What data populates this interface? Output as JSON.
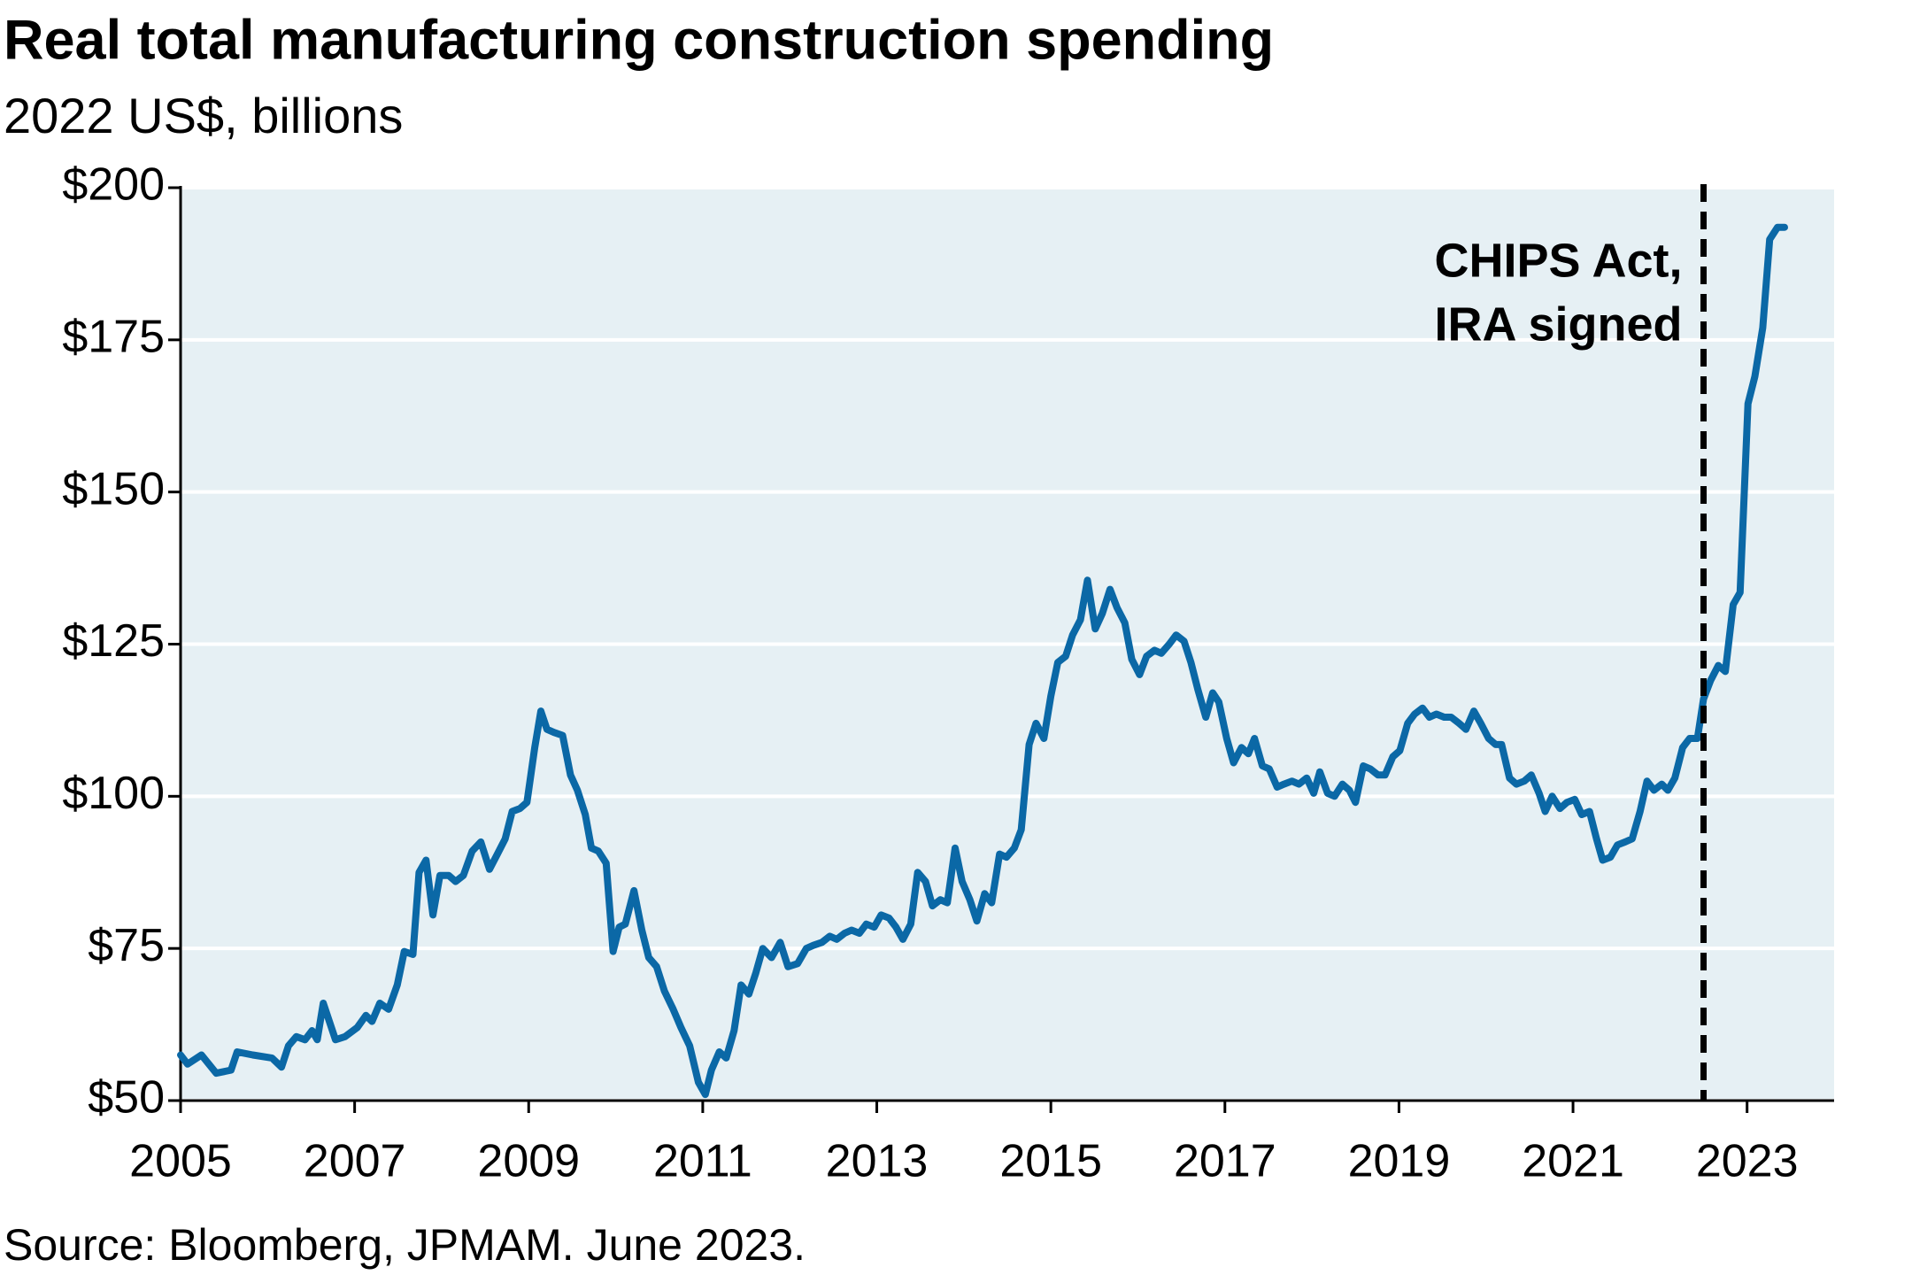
{
  "chart_data": {
    "type": "line",
    "title": "Real total manufacturing construction spending",
    "subtitle": "2022 US$, billions",
    "source": "Source: Bloomberg, JPMAM. June 2023.",
    "color": "#0b68a6",
    "grid": true,
    "xlim": [
      2005,
      2024
    ],
    "xticks": [
      2005,
      2007,
      2009,
      2011,
      2013,
      2015,
      2017,
      2019,
      2021,
      2023
    ],
    "ylim": [
      50,
      200
    ],
    "yticks": [
      {
        "value": 50,
        "label": "$50"
      },
      {
        "value": 75,
        "label": "$75"
      },
      {
        "value": 100,
        "label": "$100"
      },
      {
        "value": 125,
        "label": "$125"
      },
      {
        "value": 150,
        "label": "$150"
      },
      {
        "value": 175,
        "label": "$175"
      },
      {
        "value": 200,
        "label": "$200"
      }
    ],
    "annotations": [
      {
        "lines": [
          "CHIPS Act,",
          "IRA signed"
        ],
        "x": 2022.5
      }
    ],
    "x": [
      2005.0,
      2005.08,
      2005.24,
      2005.41,
      2005.58,
      2005.65,
      2005.83,
      2006.05,
      2006.16,
      2006.24,
      2006.33,
      2006.43,
      2006.51,
      2006.57,
      2006.64,
      2006.78,
      2006.89,
      2007.03,
      2007.13,
      2007.2,
      2007.29,
      2007.39,
      2007.49,
      2007.57,
      2007.67,
      2007.74,
      2007.82,
      2007.9,
      2007.98,
      2008.08,
      2008.16,
      2008.25,
      2008.35,
      2008.45,
      2008.55,
      2008.64,
      2008.73,
      2008.81,
      2008.9,
      2008.98,
      2009.07,
      2009.14,
      2009.21,
      2009.29,
      2009.39,
      2009.48,
      2009.56,
      2009.65,
      2009.72,
      2009.8,
      2009.89,
      2009.97,
      2010.04,
      2010.11,
      2010.21,
      2010.3,
      2010.38,
      2010.47,
      2010.56,
      2010.66,
      2010.75,
      2010.85,
      2010.95,
      2011.03,
      2011.1,
      2011.19,
      2011.27,
      2011.36,
      2011.44,
      2011.53,
      2011.61,
      2011.69,
      2011.79,
      2011.89,
      2011.98,
      2012.09,
      2012.19,
      2012.27,
      2012.37,
      2012.46,
      2012.54,
      2012.63,
      2012.71,
      2012.8,
      2012.88,
      2012.97,
      2013.05,
      2013.14,
      2013.22,
      2013.3,
      2013.39,
      2013.47,
      2013.56,
      2013.64,
      2013.73,
      2013.81,
      2013.9,
      2013.98,
      2014.07,
      2014.15,
      2014.24,
      2014.32,
      2014.41,
      2014.49,
      2014.58,
      2014.66,
      2014.75,
      2014.83,
      2014.92,
      2015.0,
      2015.08,
      2015.17,
      2015.25,
      2015.34,
      2015.42,
      2015.51,
      2015.59,
      2015.68,
      2015.76,
      2015.85,
      2015.93,
      2016.02,
      2016.1,
      2016.19,
      2016.27,
      2016.36,
      2016.44,
      2016.53,
      2016.61,
      2016.69,
      2016.78,
      2016.86,
      2016.93,
      2017.02,
      2017.1,
      2017.19,
      2017.27,
      2017.34,
      2017.43,
      2017.51,
      2017.6,
      2017.68,
      2017.77,
      2017.85,
      2017.94,
      2018.02,
      2018.09,
      2018.18,
      2018.26,
      2018.35,
      2018.43,
      2018.5,
      2018.59,
      2018.67,
      2018.76,
      2018.84,
      2018.93,
      2019.01,
      2019.1,
      2019.18,
      2019.27,
      2019.35,
      2019.43,
      2019.52,
      2019.6,
      2019.69,
      2019.77,
      2019.86,
      2019.94,
      2020.03,
      2020.11,
      2020.18,
      2020.27,
      2020.35,
      2020.44,
      2020.52,
      2020.61,
      2020.68,
      2020.76,
      2020.85,
      2020.93,
      2021.02,
      2021.1,
      2021.19,
      2021.27,
      2021.34,
      2021.43,
      2021.51,
      2021.6,
      2021.68,
      2021.77,
      2021.85,
      2021.93,
      2022.02,
      2022.09,
      2022.17,
      2022.26,
      2022.34,
      2022.43,
      2022.5,
      2022.58,
      2022.67,
      2022.75,
      2022.84,
      2022.92,
      2023.01,
      2023.09,
      2023.18,
      2023.26,
      2023.35,
      2023.43
    ],
    "values": [
      57.5,
      56,
      57.5,
      54.5,
      55,
      58,
      57.5,
      57,
      55.5,
      59,
      60.5,
      60,
      61.5,
      60,
      66,
      60,
      60.5,
      62,
      64,
      63,
      66,
      65,
      69,
      74.5,
      74,
      87.5,
      89.5,
      80.5,
      87,
      87,
      86,
      87,
      91,
      92.5,
      88,
      90.5,
      93,
      97.5,
      98,
      99,
      108,
      114,
      111,
      110.5,
      110,
      103.5,
      101,
      97,
      91.5,
      91,
      89,
      74.5,
      78.5,
      79,
      84.5,
      78,
      73.5,
      72,
      68,
      65,
      62,
      59,
      53,
      51,
      55,
      58,
      57,
      61.5,
      69,
      67.5,
      71,
      75,
      73.5,
      76,
      72,
      72.5,
      75,
      75.5,
      76,
      77,
      76.5,
      77.5,
      78,
      77.5,
      79,
      78.5,
      80.5,
      80,
      78.5,
      76.5,
      79,
      87.5,
      86,
      82,
      83,
      82.5,
      91.5,
      86,
      83,
      79.5,
      84,
      82.5,
      90.5,
      90,
      91.5,
      94.5,
      108.5,
      112,
      109.5,
      116.5,
      122,
      123,
      126.5,
      129,
      135.5,
      127.5,
      130,
      134,
      131,
      128.5,
      122.5,
      120,
      123,
      124,
      123.5,
      125,
      126.5,
      125.5,
      122,
      117.5,
      113,
      117,
      115.5,
      109.5,
      105.5,
      108,
      107,
      109.5,
      105,
      104.5,
      101.5,
      102,
      102.5,
      102,
      103,
      100.5,
      104,
      100.5,
      100,
      102,
      101,
      99,
      105,
      104.5,
      103.5,
      103.5,
      106.5,
      107.5,
      112,
      113.5,
      114.5,
      113,
      113.5,
      113,
      113,
      112,
      111,
      114,
      112,
      109.5,
      108.5,
      108.5,
      103,
      102,
      102.5,
      103.5,
      100.5,
      97.5,
      100,
      98,
      99,
      99.5,
      97,
      97.5,
      93,
      89.5,
      90,
      92,
      92.5,
      93,
      97.5,
      102.5,
      101,
      102,
      101,
      103,
      108,
      109.5,
      109.5,
      116,
      119,
      121.5,
      120.5,
      131.5,
      133.5,
      164.5,
      169,
      177,
      191.5,
      193.5,
      193.5
    ]
  }
}
